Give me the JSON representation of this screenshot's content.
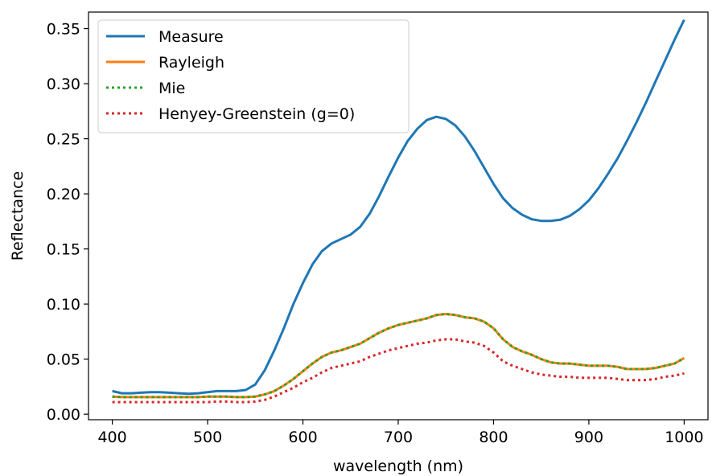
{
  "chart_data": {
    "type": "line",
    "title": "",
    "xlabel": "wavelength (nm)",
    "ylabel": "Reflectance",
    "xlim": [
      375,
      1025
    ],
    "ylim": [
      -0.005,
      0.365
    ],
    "xticks": [
      400,
      500,
      600,
      700,
      800,
      900,
      1000
    ],
    "yticks": [
      0.0,
      0.05,
      0.1,
      0.15,
      0.2,
      0.25,
      0.3,
      0.35
    ],
    "xtick_labels": [
      "400",
      "500",
      "600",
      "700",
      "800",
      "900",
      "1000"
    ],
    "ytick_labels": [
      "0.00",
      "0.05",
      "0.10",
      "0.15",
      "0.20",
      "0.25",
      "0.30",
      "0.35"
    ],
    "grid": false,
    "legend_position": "top-left",
    "x": [
      400,
      410,
      420,
      430,
      440,
      450,
      460,
      470,
      480,
      490,
      500,
      510,
      520,
      530,
      540,
      550,
      560,
      570,
      580,
      590,
      600,
      610,
      620,
      630,
      640,
      650,
      660,
      670,
      680,
      690,
      700,
      710,
      720,
      730,
      740,
      750,
      760,
      770,
      780,
      790,
      800,
      810,
      820,
      830,
      840,
      850,
      860,
      870,
      880,
      890,
      900,
      910,
      920,
      930,
      940,
      950,
      960,
      970,
      980,
      990,
      1000
    ],
    "series": [
      {
        "name": "Measure",
        "color": "#1f77b4",
        "style": "solid",
        "values": [
          0.021,
          0.019,
          0.019,
          0.0195,
          0.02,
          0.02,
          0.0195,
          0.019,
          0.0185,
          0.019,
          0.02,
          0.021,
          0.021,
          0.021,
          0.022,
          0.027,
          0.04,
          0.058,
          0.078,
          0.1,
          0.119,
          0.136,
          0.148,
          0.155,
          0.159,
          0.163,
          0.17,
          0.182,
          0.198,
          0.216,
          0.233,
          0.248,
          0.259,
          0.267,
          0.27,
          0.268,
          0.262,
          0.252,
          0.239,
          0.224,
          0.209,
          0.196,
          0.187,
          0.181,
          0.177,
          0.1755,
          0.1755,
          0.1765,
          0.18,
          0.186,
          0.194,
          0.205,
          0.218,
          0.232,
          0.248,
          0.265,
          0.283,
          0.302,
          0.321,
          0.34,
          0.358
        ]
      },
      {
        "name": "Rayleigh",
        "color": "#ff7f0e",
        "style": "solid",
        "values": [
          0.016,
          0.0155,
          0.0155,
          0.0155,
          0.0155,
          0.0155,
          0.0155,
          0.0155,
          0.0155,
          0.0155,
          0.016,
          0.016,
          0.016,
          0.0155,
          0.0155,
          0.016,
          0.018,
          0.021,
          0.026,
          0.032,
          0.039,
          0.046,
          0.052,
          0.056,
          0.058,
          0.061,
          0.064,
          0.069,
          0.074,
          0.078,
          0.081,
          0.083,
          0.085,
          0.087,
          0.09,
          0.091,
          0.09,
          0.088,
          0.087,
          0.084,
          0.078,
          0.068,
          0.061,
          0.057,
          0.054,
          0.05,
          0.047,
          0.046,
          0.046,
          0.045,
          0.044,
          0.044,
          0.044,
          0.043,
          0.041,
          0.041,
          0.041,
          0.042,
          0.044,
          0.046,
          0.051
        ]
      },
      {
        "name": "Mie",
        "color": "#2ca02c",
        "style": "dotted",
        "values": [
          0.016,
          0.0155,
          0.0155,
          0.0155,
          0.0155,
          0.0155,
          0.0155,
          0.0155,
          0.0155,
          0.0155,
          0.016,
          0.016,
          0.016,
          0.0155,
          0.0155,
          0.016,
          0.018,
          0.021,
          0.026,
          0.032,
          0.039,
          0.046,
          0.052,
          0.056,
          0.058,
          0.061,
          0.064,
          0.069,
          0.074,
          0.078,
          0.081,
          0.083,
          0.085,
          0.087,
          0.09,
          0.091,
          0.09,
          0.088,
          0.087,
          0.084,
          0.078,
          0.068,
          0.061,
          0.057,
          0.054,
          0.05,
          0.047,
          0.046,
          0.046,
          0.045,
          0.044,
          0.044,
          0.044,
          0.043,
          0.041,
          0.041,
          0.041,
          0.042,
          0.044,
          0.046,
          0.051
        ]
      },
      {
        "name": "Henyey-Greenstein (g=0)",
        "color": "#d62728",
        "style": "dotted",
        "values": [
          0.011,
          0.011,
          0.011,
          0.011,
          0.011,
          0.011,
          0.011,
          0.011,
          0.011,
          0.011,
          0.011,
          0.0115,
          0.0115,
          0.011,
          0.011,
          0.0115,
          0.013,
          0.016,
          0.02,
          0.024,
          0.029,
          0.033,
          0.038,
          0.042,
          0.044,
          0.046,
          0.048,
          0.052,
          0.055,
          0.058,
          0.06,
          0.062,
          0.064,
          0.065,
          0.067,
          0.068,
          0.068,
          0.066,
          0.065,
          0.062,
          0.056,
          0.048,
          0.044,
          0.041,
          0.038,
          0.036,
          0.035,
          0.034,
          0.034,
          0.033,
          0.033,
          0.033,
          0.033,
          0.032,
          0.031,
          0.031,
          0.031,
          0.032,
          0.034,
          0.035,
          0.037
        ]
      }
    ]
  }
}
